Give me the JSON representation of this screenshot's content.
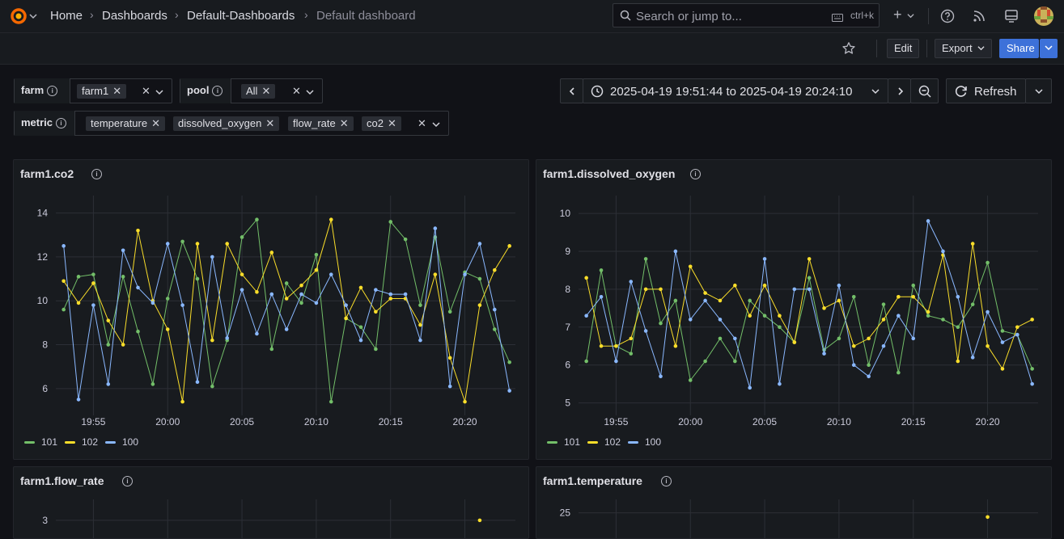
{
  "breadcrumb": {
    "home": "Home",
    "dashboards": "Dashboards",
    "folder": "Default-Dashboards",
    "current": "Default dashboard"
  },
  "search": {
    "placeholder": "Search or jump to...",
    "shortcut": "ctrl+k"
  },
  "toolbar": {
    "edit": "Edit",
    "export": "Export",
    "share": "Share",
    "add": "+"
  },
  "variables": {
    "farm": {
      "label": "farm",
      "values": [
        "farm1"
      ]
    },
    "pool": {
      "label": "pool",
      "values": [
        "All"
      ]
    },
    "metric": {
      "label": "metric",
      "values": [
        "temperature",
        "dissolved_oxygen",
        "flow_rate",
        "co2"
      ]
    }
  },
  "time_range": {
    "text": "2025-04-19 19:51:44 to 2025-04-19 20:24:10",
    "refresh": "Refresh"
  },
  "colors": {
    "101": "#73bf69",
    "102": "#fade2a",
    "100": "#8ab8ff"
  },
  "legend": [
    "101",
    "102",
    "100"
  ],
  "panels": [
    {
      "title": "farm1.co2"
    },
    {
      "title": "farm1.dissolved_oxygen"
    },
    {
      "title": "farm1.flow_rate"
    },
    {
      "title": "farm1.temperature"
    }
  ],
  "chart_data": [
    {
      "type": "line",
      "title": "farm1.co2",
      "x": [
        "19:53",
        "19:54",
        "19:55",
        "19:56",
        "19:57",
        "19:58",
        "19:59",
        "20:00",
        "20:01",
        "20:02",
        "20:03",
        "20:04",
        "20:05",
        "20:06",
        "20:07",
        "20:08",
        "20:09",
        "20:10",
        "20:11",
        "20:12",
        "20:13",
        "20:14",
        "20:15",
        "20:16",
        "20:17",
        "20:18",
        "20:19",
        "20:20",
        "20:21",
        "20:22",
        "20:23"
      ],
      "xticks": [
        "19:55",
        "20:00",
        "20:05",
        "20:10",
        "20:15",
        "20:20"
      ],
      "yticks": [
        6,
        8,
        10,
        12,
        14
      ],
      "ylim": [
        5,
        14.5
      ],
      "series": [
        {
          "name": "101",
          "values": [
            9.6,
            11.1,
            11.2,
            8.0,
            11.1,
            8.6,
            6.2,
            10.1,
            12.7,
            11.0,
            6.1,
            8.2,
            12.9,
            13.7,
            7.8,
            10.8,
            9.9,
            12.1,
            5.4,
            9.2,
            8.8,
            7.8,
            13.6,
            12.8,
            9.8,
            12.9,
            9.5,
            11.3,
            11.0,
            8.7,
            7.2
          ]
        },
        {
          "name": "102",
          "values": [
            10.9,
            9.9,
            10.8,
            9.1,
            8.0,
            13.2,
            10.0,
            8.7,
            5.4,
            12.6,
            8.2,
            12.6,
            11.2,
            10.4,
            12.2,
            10.1,
            10.7,
            11.4,
            13.7,
            9.2,
            10.6,
            9.5,
            10.1,
            10.1,
            8.9,
            11.2,
            7.4,
            5.4,
            9.8,
            11.4,
            12.5
          ]
        },
        {
          "name": "100",
          "values": [
            12.5,
            5.5,
            9.8,
            6.2,
            12.3,
            10.6,
            9.9,
            12.6,
            9.8,
            6.3,
            12.0,
            8.3,
            10.5,
            8.5,
            10.3,
            8.7,
            10.3,
            9.9,
            11.2,
            9.8,
            8.2,
            10.5,
            10.3,
            10.3,
            8.2,
            13.3,
            6.1,
            11.2,
            12.6,
            9.6,
            5.9
          ]
        }
      ]
    },
    {
      "type": "line",
      "title": "farm1.dissolved_oxygen",
      "x": [
        "19:53",
        "19:54",
        "19:55",
        "19:56",
        "19:57",
        "19:58",
        "19:59",
        "20:00",
        "20:01",
        "20:02",
        "20:03",
        "20:04",
        "20:05",
        "20:06",
        "20:07",
        "20:08",
        "20:09",
        "20:10",
        "20:11",
        "20:12",
        "20:13",
        "20:14",
        "20:15",
        "20:16",
        "20:17",
        "20:18",
        "20:19",
        "20:20",
        "20:21",
        "20:22",
        "20:23"
      ],
      "xticks": [
        "19:55",
        "20:00",
        "20:05",
        "20:10",
        "20:15",
        "20:20"
      ],
      "yticks": [
        5,
        6,
        7,
        8,
        9,
        10
      ],
      "ylim": [
        4.8,
        10.3
      ],
      "series": [
        {
          "name": "101",
          "values": [
            6.1,
            8.5,
            6.5,
            6.3,
            8.8,
            7.1,
            7.7,
            5.6,
            6.1,
            6.7,
            6.1,
            7.7,
            7.3,
            7.0,
            6.6,
            8.3,
            6.4,
            6.7,
            7.8,
            6.0,
            7.6,
            5.8,
            8.1,
            7.3,
            7.2,
            7.0,
            7.6,
            8.7,
            6.9,
            6.8,
            5.9
          ]
        },
        {
          "name": "102",
          "values": [
            8.3,
            6.5,
            6.5,
            6.7,
            8.0,
            8.0,
            6.5,
            8.6,
            7.9,
            7.7,
            8.1,
            7.3,
            8.1,
            7.3,
            6.6,
            8.8,
            7.5,
            7.7,
            6.5,
            6.7,
            7.2,
            7.8,
            7.8,
            7.4,
            8.9,
            6.1,
            9.2,
            6.5,
            5.9,
            7.0,
            7.2
          ]
        },
        {
          "name": "100",
          "values": [
            7.3,
            7.8,
            6.1,
            8.2,
            6.9,
            5.7,
            9.0,
            7.2,
            7.7,
            7.2,
            6.7,
            5.4,
            8.8,
            5.5,
            8.0,
            8.0,
            6.3,
            8.1,
            6.0,
            5.7,
            6.5,
            7.3,
            6.7,
            9.8,
            9.0,
            7.8,
            6.2,
            7.4,
            6.6,
            6.8,
            5.5
          ]
        }
      ]
    },
    {
      "type": "line",
      "title": "farm1.flow_rate",
      "x": [
        "19:53",
        "19:54",
        "19:55",
        "19:56",
        "19:57",
        "19:58",
        "19:59",
        "20:00",
        "20:01",
        "20:02",
        "20:03",
        "20:04",
        "20:05",
        "20:06",
        "20:07",
        "20:08",
        "20:09",
        "20:10",
        "20:11",
        "20:12",
        "20:13",
        "20:14",
        "20:15",
        "20:16",
        "20:17",
        "20:18",
        "20:19",
        "20:20",
        "20:21",
        "20:22",
        "20:23"
      ],
      "xticks": [
        "19:55",
        "20:00",
        "20:05",
        "20:10",
        "20:15",
        "20:20"
      ],
      "yticks": [
        3
      ],
      "ylim": [
        0,
        3.4
      ],
      "series": [
        {
          "name": "102",
          "values": [
            null,
            null,
            null,
            null,
            null,
            null,
            null,
            null,
            null,
            null,
            null,
            null,
            null,
            null,
            null,
            null,
            null,
            null,
            null,
            null,
            null,
            null,
            null,
            null,
            null,
            null,
            null,
            null,
            3.0,
            null,
            null
          ]
        }
      ]
    },
    {
      "type": "line",
      "title": "farm1.temperature",
      "x": [
        "19:53",
        "19:54",
        "19:55",
        "19:56",
        "19:57",
        "19:58",
        "19:59",
        "20:00",
        "20:01",
        "20:02",
        "20:03",
        "20:04",
        "20:05",
        "20:06",
        "20:07",
        "20:08",
        "20:09",
        "20:10",
        "20:11",
        "20:12",
        "20:13",
        "20:14",
        "20:15",
        "20:16",
        "20:17",
        "20:18",
        "20:19",
        "20:20",
        "20:21",
        "20:22",
        "20:23"
      ],
      "xticks": [
        "19:55",
        "20:00",
        "20:05",
        "20:10",
        "20:15",
        "20:20"
      ],
      "yticks": [
        25
      ],
      "ylim": [
        0,
        26.5
      ],
      "series": [
        {
          "name": "102",
          "values": [
            null,
            null,
            null,
            null,
            null,
            null,
            null,
            null,
            null,
            null,
            null,
            null,
            null,
            null,
            null,
            null,
            null,
            null,
            null,
            null,
            null,
            null,
            null,
            null,
            null,
            null,
            null,
            24.1,
            null,
            null,
            null
          ]
        }
      ]
    }
  ]
}
